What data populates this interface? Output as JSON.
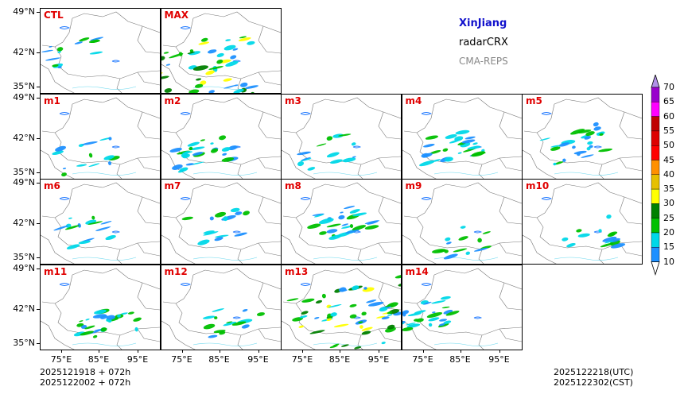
{
  "title": {
    "region": "XinJiang",
    "product": "radarCRX",
    "model": "CMA-REPS"
  },
  "colors": {
    "title": "#1111cc",
    "product": "#000000",
    "model": "#888888",
    "panel_label": "#e00000"
  },
  "panels": [
    {
      "label": "CTL",
      "row": 0,
      "col": 0,
      "activity": "light"
    },
    {
      "label": "MAX",
      "row": 0,
      "col": 1,
      "activity": "heavy"
    },
    {
      "label": "m1",
      "row": 1,
      "col": 0,
      "activity": "light"
    },
    {
      "label": "m2",
      "row": 1,
      "col": 1,
      "activity": "medium"
    },
    {
      "label": "m3",
      "row": 1,
      "col": 2,
      "activity": "light"
    },
    {
      "label": "m4",
      "row": 1,
      "col": 3,
      "activity": "medium"
    },
    {
      "label": "m5",
      "row": 1,
      "col": 4,
      "activity": "medium"
    },
    {
      "label": "m6",
      "row": 2,
      "col": 0,
      "activity": "light"
    },
    {
      "label": "m7",
      "row": 2,
      "col": 1,
      "activity": "light"
    },
    {
      "label": "m8",
      "row": 2,
      "col": 2,
      "activity": "medium"
    },
    {
      "label": "m9",
      "row": 2,
      "col": 3,
      "activity": "light"
    },
    {
      "label": "m10",
      "row": 2,
      "col": 4,
      "activity": "light"
    },
    {
      "label": "m11",
      "row": 3,
      "col": 0,
      "activity": "medium"
    },
    {
      "label": "m12",
      "row": 3,
      "col": 1,
      "activity": "light"
    },
    {
      "label": "m13",
      "row": 3,
      "col": 2,
      "activity": "heavy"
    },
    {
      "label": "m14",
      "row": 3,
      "col": 3,
      "activity": "medium"
    }
  ],
  "axes": {
    "lat_ticks": [
      "49°N",
      "42°N",
      "35°N"
    ],
    "lon_ticks": [
      "75°E",
      "85°E",
      "95°E"
    ]
  },
  "colorbar": {
    "levels": [
      "10",
      "15",
      "20",
      "25",
      "30",
      "35",
      "40",
      "45",
      "50",
      "55",
      "60",
      "65",
      "70"
    ],
    "colors": [
      "#1e90ff",
      "#00d8e8",
      "#00c000",
      "#008000",
      "#ffff00",
      "#e6c000",
      "#ff9000",
      "#ff0000",
      "#dd0000",
      "#c00000",
      "#ff00ff",
      "#9900cc",
      "#a878e0"
    ],
    "under_color": "#ffffff",
    "over_color": "#b090e8"
  },
  "footer": {
    "init_line1": "2025121918  +  072h",
    "init_line2": "2025122002  +  072h",
    "valid_utc": "2025122218(UTC)",
    "valid_cst": "2025122302(CST)"
  }
}
